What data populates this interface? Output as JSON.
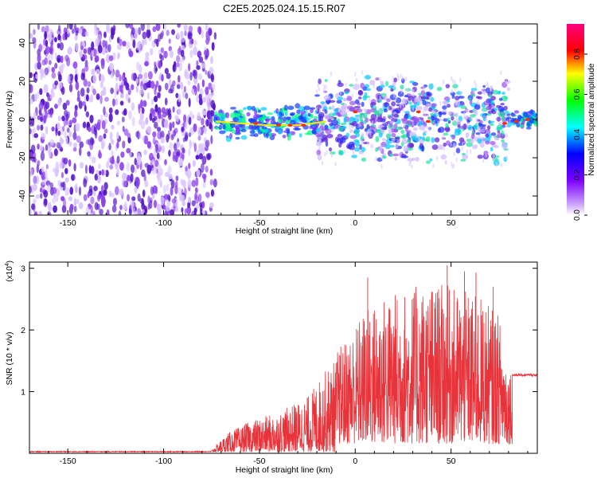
{
  "title": "C2E5.2025.024.15.15.R07",
  "colors": {
    "snr_trace": "#e8333a",
    "scatter_light": "#d9c3ff",
    "scatter_mid": "#8f43ee",
    "scatter_dark": "#5010c8"
  },
  "chart_data": [
    {
      "type": "heatmap",
      "name": "spectrogram",
      "xlabel": "Height of straight line (km)",
      "ylabel": "Frequency (Hz)",
      "xlim": [
        -170,
        95
      ],
      "ylim": [
        -50,
        50
      ],
      "x_ticks": [
        -150,
        -100,
        -50,
        0,
        50
      ],
      "y_ticks": [
        -40,
        -20,
        0,
        20,
        40
      ],
      "grid": false,
      "colorbar": {
        "label": "Normalized spectral amplitude",
        "range": [
          0.0,
          0.95
        ],
        "ticks": [
          0.0,
          0.2,
          0.4,
          0.6,
          0.8
        ],
        "colormap": [
          "#ff0080",
          "#ff0000",
          "#ffff00",
          "#00ff00",
          "#00ffff",
          "#0000ff",
          "#8000ff",
          "#ffffff"
        ]
      },
      "regions": [
        {
          "x_range": [
            -170,
            -73
          ],
          "freq_range": [
            -50,
            50
          ],
          "amplitude": 0.05,
          "description": "noise"
        },
        {
          "x_range": [
            -73,
            -20
          ],
          "freq_center": -2,
          "freq_halfwidth": 6,
          "amplitude": 0.9
        },
        {
          "x_range": [
            -20,
            80
          ],
          "freq_center": 0,
          "freq_halfwidth": 15,
          "amplitude": 0.4
        },
        {
          "x_range": [
            80,
            95
          ],
          "freq_center": 0,
          "freq_halfwidth": 3,
          "amplitude": 0.9
        }
      ]
    },
    {
      "type": "line",
      "name": "snr",
      "xlabel": "Height of straight line (km)",
      "ylabel": "SNR (10 * v/v)",
      "y_multiplier_label": "(x10",
      "y_multiplier_exp": "4",
      "y_multiplier_close": ")",
      "xlim": [
        -170,
        95
      ],
      "ylim": [
        0,
        3.1
      ],
      "x_ticks": [
        -150,
        -100,
        -50,
        0,
        50
      ],
      "y_ticks": [
        1,
        2,
        3
      ],
      "grid": false,
      "envelope": [
        {
          "x": -170,
          "y": 0.02
        },
        {
          "x": -75,
          "y": 0.03
        },
        {
          "x": -67,
          "y": 0.3
        },
        {
          "x": -55,
          "y": 0.5
        },
        {
          "x": -40,
          "y": 0.65
        },
        {
          "x": -25,
          "y": 0.9
        },
        {
          "x": -15,
          "y": 1.35
        },
        {
          "x": -5,
          "y": 1.7
        },
        {
          "x": 5,
          "y": 2.2
        },
        {
          "x": 15,
          "y": 2.4
        },
        {
          "x": 25,
          "y": 2.5
        },
        {
          "x": 35,
          "y": 2.6
        },
        {
          "x": 45,
          "y": 2.6
        },
        {
          "x": 55,
          "y": 2.5
        },
        {
          "x": 65,
          "y": 2.4
        },
        {
          "x": 75,
          "y": 2.1
        },
        {
          "x": 80,
          "y": 1.3
        },
        {
          "x": 82,
          "y": 1.28
        },
        {
          "x": 95,
          "y": 1.28
        }
      ],
      "peaks": [
        {
          "x": 6.5,
          "y": 2.85
        },
        {
          "x": 48,
          "y": 3.05
        },
        {
          "x": 57,
          "y": 2.95
        },
        {
          "x": 63,
          "y": 2.93
        },
        {
          "x": 40,
          "y": 2.6
        },
        {
          "x": 72,
          "y": 2.7
        }
      ]
    }
  ]
}
